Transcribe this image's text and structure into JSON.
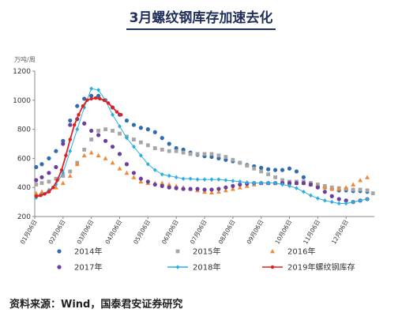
{
  "title": "3月螺纹钢库存加速去化",
  "source": "资料来源：Wind，国泰君安证券研究",
  "chart_data": {
    "type": "scatter",
    "ylabel": "万吨/周",
    "ylim": [
      200,
      1200
    ],
    "yticks": [
      "1200",
      "1000",
      "800",
      "600",
      "400",
      "200"
    ],
    "categories": [
      "01月06日",
      "02月06日",
      "03月06日",
      "04月06日",
      "05月06日",
      "06月06日",
      "07月06日",
      "08月06日",
      "09月06日",
      "10月06日",
      "11月06日",
      "12月06日"
    ],
    "legend_position": "bottom",
    "series": [
      {
        "name": "2014年",
        "color": "#2e6bb0",
        "marker": "circle",
        "line": false,
        "x": [
          0.05,
          0.25,
          0.5,
          0.75,
          1.0,
          1.25,
          1.5,
          1.75,
          2.0,
          2.25,
          2.5,
          2.75,
          3.0,
          3.25,
          3.5,
          3.75,
          4.0,
          4.25,
          4.5,
          4.75,
          5.0,
          5.25,
          5.5,
          5.75,
          6.0,
          6.25,
          6.5,
          6.75,
          7.0,
          7.25,
          7.5,
          7.75,
          8.0,
          8.25,
          8.5,
          8.75,
          9.0,
          9.25,
          9.5,
          9.75,
          10.0,
          10.25,
          10.5,
          10.75,
          11.0,
          11.25,
          11.5,
          11.75
        ],
        "y": [
          540,
          560,
          600,
          650,
          720,
          860,
          960,
          1010,
          1030,
          1030,
          1000,
          950,
          900,
          860,
          830,
          810,
          800,
          780,
          740,
          700,
          670,
          660,
          640,
          625,
          615,
          610,
          600,
          590,
          580,
          570,
          555,
          545,
          535,
          525,
          520,
          520,
          530,
          510,
          470,
          430,
          410,
          400,
          390,
          380,
          380,
          375,
          375,
          370
        ]
      },
      {
        "name": "2015年",
        "color": "#a6a6a6",
        "marker": "square",
        "line": false,
        "x": [
          0.05,
          0.25,
          0.5,
          0.75,
          1.0,
          1.25,
          1.5,
          1.75,
          2.0,
          2.25,
          2.5,
          2.75,
          3.0,
          3.25,
          3.5,
          3.75,
          4.0,
          4.25,
          4.5,
          4.75,
          5.0,
          5.25,
          5.5,
          5.75,
          6.0,
          6.25,
          6.5,
          6.75,
          7.0,
          7.25,
          7.5,
          7.75,
          8.0,
          8.25,
          8.5,
          8.75,
          9.0,
          9.25,
          9.5,
          9.75,
          10.0,
          10.25,
          10.5,
          10.75,
          11.0,
          11.25,
          11.5,
          11.75,
          11.95
        ],
        "y": [
          420,
          430,
          440,
          460,
          480,
          510,
          570,
          660,
          730,
          790,
          800,
          790,
          770,
          750,
          730,
          710,
          690,
          670,
          660,
          650,
          650,
          640,
          630,
          630,
          630,
          630,
          620,
          610,
          590,
          570,
          550,
          530,
          510,
          490,
          470,
          450,
          440,
          440,
          440,
          430,
          420,
          410,
          400,
          395,
          390,
          385,
          385,
          380,
          360
        ]
      },
      {
        "name": "2016年",
        "color": "#ed8b3a",
        "marker": "triangle",
        "line": false,
        "x": [
          0.05,
          0.25,
          0.5,
          0.75,
          1.0,
          1.25,
          1.5,
          1.75,
          2.0,
          2.25,
          2.5,
          2.75,
          3.0,
          3.25,
          3.5,
          3.75,
          4.0,
          4.25,
          4.5,
          4.75,
          5.0,
          5.25,
          5.5,
          5.75,
          6.0,
          6.25,
          6.5,
          6.75,
          7.0,
          7.25,
          7.5,
          7.75,
          8.0,
          8.25,
          8.5,
          8.75,
          9.0,
          9.25,
          9.5,
          9.75,
          10.0,
          10.25,
          10.5,
          10.75,
          11.0,
          11.25,
          11.5,
          11.75
        ],
        "y": [
          360,
          370,
          385,
          400,
          430,
          480,
          560,
          620,
          640,
          620,
          600,
          570,
          530,
          500,
          470,
          440,
          430,
          430,
          430,
          420,
          410,
          400,
          390,
          380,
          370,
          365,
          370,
          380,
          390,
          400,
          410,
          420,
          430,
          430,
          430,
          430,
          430,
          430,
          430,
          420,
          410,
          400,
          390,
          390,
          400,
          420,
          450,
          470
        ]
      },
      {
        "name": "2017年",
        "color": "#6a3ea0",
        "marker": "circle",
        "line": false,
        "x": [
          0.05,
          0.25,
          0.5,
          0.75,
          1.0,
          1.25,
          1.5,
          1.75,
          2.0,
          2.25,
          2.5,
          2.75,
          3.0,
          3.25,
          3.5,
          3.75,
          4.0,
          4.25,
          4.5,
          4.75,
          5.0,
          5.25,
          5.5,
          5.75,
          6.0,
          6.25,
          6.5,
          6.75,
          7.0,
          7.25,
          7.5,
          7.75,
          8.0,
          8.25,
          8.5,
          8.75,
          9.0,
          9.25,
          9.5,
          9.75,
          10.0,
          10.25,
          10.5,
          10.75,
          11.0,
          11.25,
          11.5,
          11.75
        ],
        "y": [
          450,
          470,
          500,
          540,
          700,
          830,
          870,
          840,
          790,
          760,
          720,
          680,
          630,
          560,
          500,
          460,
          440,
          420,
          410,
          400,
          395,
          390,
          390,
          390,
          385,
          385,
          390,
          400,
          410,
          420,
          425,
          430,
          430,
          430,
          430,
          430,
          430,
          430,
          430,
          420,
          400,
          370,
          340,
          320,
          310,
          300,
          310,
          320
        ]
      },
      {
        "name": "2018年",
        "color": "#2ab0e0",
        "marker": "diamond",
        "line": true,
        "x": [
          0.05,
          0.25,
          0.5,
          0.75,
          1.0,
          1.25,
          1.5,
          1.75,
          2.0,
          2.25,
          2.5,
          2.75,
          3.0,
          3.25,
          3.5,
          3.75,
          4.0,
          4.25,
          4.5,
          4.75,
          5.0,
          5.25,
          5.5,
          5.75,
          6.0,
          6.25,
          6.5,
          6.75,
          7.0,
          7.25,
          7.5,
          7.75,
          8.0,
          8.25,
          8.5,
          8.75,
          9.0,
          9.25,
          9.5,
          9.75,
          10.0,
          10.25,
          10.5,
          10.75,
          11.0,
          11.25,
          11.5,
          11.75
        ],
        "y": [
          330,
          350,
          380,
          420,
          500,
          650,
          800,
          950,
          1080,
          1070,
          1000,
          900,
          820,
          740,
          680,
          620,
          560,
          520,
          490,
          480,
          470,
          460,
          460,
          455,
          455,
          455,
          455,
          450,
          445,
          440,
          435,
          430,
          430,
          430,
          430,
          420,
          410,
          395,
          370,
          345,
          325,
          310,
          300,
          290,
          290,
          300,
          310,
          320
        ]
      },
      {
        "name": "2019年螺纹钢库存",
        "color": "#e0201f",
        "marker": "circle",
        "line": true,
        "x": [
          0.05,
          0.2,
          0.35,
          0.5,
          0.65,
          0.8,
          0.95,
          1.1,
          1.25,
          1.4,
          1.55,
          1.7,
          1.85,
          2.0,
          2.15,
          2.3,
          2.45,
          2.6,
          2.75,
          2.9,
          3.05
        ],
        "y": [
          340,
          345,
          355,
          370,
          400,
          450,
          520,
          620,
          730,
          830,
          900,
          960,
          1000,
          1010,
          1015,
          1010,
          1000,
          980,
          950,
          920,
          900
        ]
      }
    ]
  }
}
